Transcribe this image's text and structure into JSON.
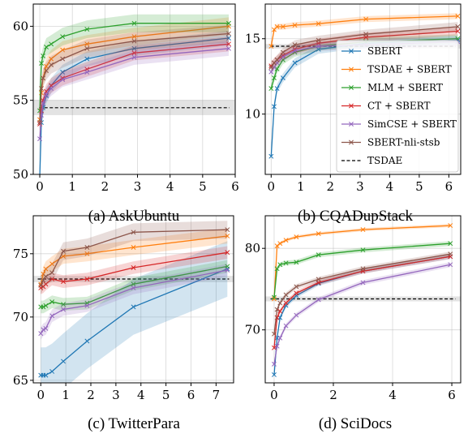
{
  "figure": {
    "legend": [
      {
        "name": "SBERT",
        "color": "#1f77b4",
        "dashed": false
      },
      {
        "name": "TSDAE + SBERT",
        "color": "#ff7f0e",
        "dashed": false
      },
      {
        "name": "MLM + SBERT",
        "color": "#2ca02c",
        "dashed": false
      },
      {
        "name": "CT + SBERT",
        "color": "#d62728",
        "dashed": false
      },
      {
        "name": "SimCSE + SBERT",
        "color": "#9467bd",
        "dashed": false
      },
      {
        "name": "SBERT-nli-stsb",
        "color": "#8c564b",
        "dashed": false
      },
      {
        "name": "TSDAE",
        "color": "#000000",
        "dashed": true
      }
    ]
  },
  "chart_data": [
    {
      "type": "line",
      "caption": "(a) AskUbuntu",
      "xlim": [
        -0.2,
        6
      ],
      "ylim": [
        50,
        61.5
      ],
      "xticks": [
        0,
        1,
        2,
        3,
        4,
        5,
        6
      ],
      "yticks": [
        50,
        55,
        60
      ],
      "grid": true,
      "series": [
        {
          "name": "SBERT",
          "color": "#1f77b4",
          "x": [
            0,
            0.05,
            0.1,
            0.2,
            0.35,
            0.7,
            1.45,
            2.9,
            5.8
          ],
          "y": [
            49.8,
            53.5,
            54.5,
            55.3,
            56.0,
            56.9,
            57.8,
            58.5,
            59.2
          ],
          "band": 0.5
        },
        {
          "name": "TSDAE + SBERT",
          "color": "#ff7f0e",
          "x": [
            0,
            0.05,
            0.1,
            0.2,
            0.35,
            0.7,
            1.45,
            2.9,
            5.8
          ],
          "y": [
            53.7,
            55.5,
            56.5,
            57.3,
            57.8,
            58.4,
            58.8,
            59.3,
            60.0
          ],
          "band": 0.6
        },
        {
          "name": "MLM + SBERT",
          "color": "#2ca02c",
          "x": [
            0,
            0.05,
            0.1,
            0.2,
            0.35,
            0.7,
            1.45,
            2.9,
            5.8
          ],
          "y": [
            54.3,
            57.5,
            58.0,
            58.6,
            58.8,
            59.3,
            59.8,
            60.2,
            60.2
          ],
          "band": 0.6
        },
        {
          "name": "CT + SBERT",
          "color": "#d62728",
          "x": [
            0,
            0.05,
            0.1,
            0.2,
            0.35,
            0.7,
            1.45,
            2.9,
            5.8
          ],
          "y": [
            53.4,
            54.3,
            55.0,
            55.6,
            56.0,
            56.5,
            57.1,
            58.2,
            58.8
          ],
          "band": 0.5
        },
        {
          "name": "SimCSE + SBERT",
          "color": "#9467bd",
          "x": [
            0,
            0.05,
            0.1,
            0.2,
            0.35,
            0.7,
            1.45,
            2.9,
            5.8
          ],
          "y": [
            52.4,
            54.0,
            54.8,
            55.4,
            55.8,
            56.4,
            56.9,
            57.9,
            58.5
          ],
          "band": 0.5
        },
        {
          "name": "SBERT-nli-stsb",
          "color": "#8c564b",
          "x": [
            0,
            0.05,
            0.1,
            0.2,
            0.35,
            0.7,
            1.45,
            2.9,
            5.8
          ],
          "y": [
            53.5,
            55.8,
            56.5,
            57.0,
            57.4,
            57.8,
            58.5,
            59.0,
            59.5
          ],
          "band": 0.6
        }
      ],
      "baseline": {
        "name": "TSDAE",
        "y": 54.5,
        "band": 0.5
      }
    },
    {
      "type": "line",
      "caption": "(b) CQADupStack",
      "xlim": [
        -0.2,
        6.4
      ],
      "ylim": [
        6,
        17.3
      ],
      "xticks": [
        0,
        1,
        2,
        3,
        4,
        5,
        6
      ],
      "yticks": [
        10,
        15
      ],
      "grid": true,
      "legend_position": "lower-right",
      "series": [
        {
          "name": "SBERT",
          "color": "#1f77b4",
          "x": [
            0,
            0.1,
            0.2,
            0.4,
            0.8,
            1.6,
            3.2,
            6.3
          ],
          "y": [
            7.2,
            10.5,
            11.7,
            12.4,
            13.4,
            14.3,
            14.7,
            14.9
          ],
          "band": 0.3
        },
        {
          "name": "TSDAE + SBERT",
          "color": "#ff7f0e",
          "x": [
            0,
            0.1,
            0.2,
            0.4,
            0.8,
            1.6,
            3.2,
            6.3
          ],
          "y": [
            14.5,
            15.6,
            15.8,
            15.8,
            15.9,
            16.0,
            16.3,
            16.5
          ],
          "band": 0.2
        },
        {
          "name": "MLM + SBERT",
          "color": "#2ca02c",
          "x": [
            0,
            0.1,
            0.2,
            0.4,
            0.8,
            1.6,
            3.2,
            6.3
          ],
          "y": [
            11.7,
            12.4,
            13.0,
            13.6,
            14.1,
            14.5,
            14.8,
            15.0
          ],
          "band": 0.3
        },
        {
          "name": "CT + SBERT",
          "color": "#d62728",
          "x": [
            0,
            0.1,
            0.2,
            0.4,
            0.8,
            1.6,
            3.2,
            6.3
          ],
          "y": [
            13.2,
            13.4,
            13.6,
            13.9,
            14.3,
            14.7,
            15.1,
            15.5
          ],
          "band": 0.3
        },
        {
          "name": "SimCSE + SBERT",
          "color": "#9467bd",
          "x": [
            0,
            0.1,
            0.2,
            0.4,
            0.8,
            1.6,
            3.2,
            6.3
          ],
          "y": [
            12.8,
            13.1,
            13.4,
            13.8,
            14.2,
            14.5,
            14.6,
            14.8
          ],
          "band": 0.3
        },
        {
          "name": "SBERT-nli-stsb",
          "color": "#8c564b",
          "x": [
            0,
            0.1,
            0.2,
            0.4,
            0.8,
            1.6,
            3.2,
            6.3
          ],
          "y": [
            13.1,
            13.4,
            13.6,
            14.1,
            14.6,
            14.9,
            15.3,
            15.8
          ],
          "band": 0.3
        }
      ],
      "baseline": {
        "name": "TSDAE",
        "y": 14.5,
        "band": 0.15
      }
    },
    {
      "type": "line",
      "caption": "(c) TwitterPara",
      "xlim": [
        -0.3,
        7.7
      ],
      "ylim": [
        64.8,
        78
      ],
      "xticks": [
        0,
        1,
        2,
        3,
        4,
        5,
        6,
        7
      ],
      "yticks": [
        65,
        70,
        75
      ],
      "grid": true,
      "series": [
        {
          "name": "SBERT",
          "color": "#1f77b4",
          "x": [
            0,
            0.1,
            0.2,
            0.45,
            0.9,
            1.85,
            3.7,
            7.45
          ],
          "y": [
            65.4,
            65.4,
            65.4,
            65.7,
            66.5,
            68.1,
            70.8,
            73.8
          ],
          "band": 2.2
        },
        {
          "name": "TSDAE + SBERT",
          "color": "#ff7f0e",
          "x": [
            0,
            0.1,
            0.2,
            0.45,
            0.9,
            1.85,
            3.7,
            7.45
          ],
          "y": [
            72.6,
            73.4,
            73.8,
            74.2,
            74.8,
            75.0,
            75.5,
            76.4
          ],
          "band": 0.6
        },
        {
          "name": "MLM + SBERT",
          "color": "#2ca02c",
          "x": [
            0,
            0.1,
            0.2,
            0.45,
            0.9,
            1.85,
            3.7,
            7.45
          ],
          "y": [
            70.8,
            70.8,
            70.9,
            71.2,
            71.0,
            71.1,
            72.6,
            74.0
          ],
          "band": 0.5
        },
        {
          "name": "CT + SBERT",
          "color": "#d62728",
          "x": [
            0,
            0.1,
            0.2,
            0.45,
            0.9,
            1.85,
            3.7,
            7.45
          ],
          "y": [
            72.3,
            72.4,
            72.6,
            73.0,
            72.8,
            73.0,
            73.9,
            75.1
          ],
          "band": 0.5
        },
        {
          "name": "SimCSE + SBERT",
          "color": "#9467bd",
          "x": [
            0,
            0.1,
            0.2,
            0.45,
            0.9,
            1.85,
            3.7,
            7.45
          ],
          "y": [
            68.7,
            69.0,
            69.1,
            70.1,
            70.6,
            70.9,
            72.3,
            73.7
          ],
          "band": 0.5
        },
        {
          "name": "SBERT-nli-stsb",
          "color": "#8c564b",
          "x": [
            0,
            0.1,
            0.2,
            0.45,
            0.9,
            1.85,
            3.7,
            7.45
          ],
          "y": [
            72.5,
            72.9,
            73.2,
            73.5,
            75.2,
            75.5,
            76.7,
            76.9
          ],
          "band": 0.7
        }
      ],
      "baseline": {
        "name": "TSDAE",
        "y": 73.0,
        "band": 0.25
      }
    },
    {
      "type": "line",
      "caption": "(d) SciDocs",
      "xlim": [
        -0.3,
        6.3
      ],
      "ylim": [
        63.5,
        84
      ],
      "xticks": [
        0,
        2,
        4,
        6
      ],
      "yticks": [
        70,
        80
      ],
      "grid": true,
      "series": [
        {
          "name": "SBERT",
          "color": "#1f77b4",
          "x": [
            0,
            0.1,
            0.2,
            0.4,
            0.75,
            1.5,
            3.0,
            5.95
          ],
          "y": [
            64.5,
            69.0,
            71.5,
            73.0,
            74.2,
            75.7,
            77.2,
            79.0
          ],
          "band": 0.3
        },
        {
          "name": "TSDAE + SBERT",
          "color": "#ff7f0e",
          "x": [
            0,
            0.1,
            0.2,
            0.4,
            0.75,
            1.5,
            3.0,
            5.95
          ],
          "y": [
            73.8,
            80.3,
            80.6,
            81.0,
            81.4,
            81.8,
            82.3,
            82.8
          ],
          "band": 0.2
        },
        {
          "name": "MLM + SBERT",
          "color": "#2ca02c",
          "x": [
            0,
            0.1,
            0.2,
            0.4,
            0.75,
            1.5,
            3.0,
            5.95
          ],
          "y": [
            74.0,
            77.5,
            78.0,
            78.2,
            78.3,
            79.2,
            79.8,
            80.6
          ],
          "band": 0.3
        },
        {
          "name": "CT + SBERT",
          "color": "#d62728",
          "x": [
            0,
            0.1,
            0.2,
            0.4,
            0.75,
            1.5,
            3.0,
            5.95
          ],
          "y": [
            67.8,
            71.5,
            72.3,
            73.3,
            74.5,
            75.8,
            77.2,
            79.0
          ],
          "band": 0.3
        },
        {
          "name": "SimCSE + SBERT",
          "color": "#9467bd",
          "x": [
            0,
            0.1,
            0.2,
            0.4,
            0.75,
            1.5,
            3.0,
            5.95
          ],
          "y": [
            65.8,
            68.0,
            69.0,
            70.5,
            71.8,
            73.7,
            75.8,
            78.0
          ],
          "band": 0.3
        },
        {
          "name": "SBERT-nli-stsb",
          "color": "#8c564b",
          "x": [
            0,
            0.1,
            0.2,
            0.4,
            0.75,
            1.5,
            3.0,
            5.95
          ],
          "y": [
            69.5,
            72.5,
            73.3,
            74.3,
            75.3,
            76.2,
            77.5,
            79.3
          ],
          "band": 0.3
        }
      ],
      "baseline": {
        "name": "TSDAE",
        "y": 73.8,
        "band": 0.3
      }
    }
  ]
}
